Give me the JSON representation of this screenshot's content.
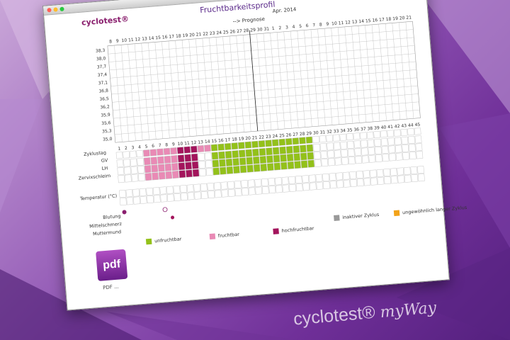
{
  "window": {
    "title": "Fruchtbarkeitsprofil",
    "logo": "cyclotest®"
  },
  "calendar": {
    "month_label": "Apr. 2014",
    "prognose_label": "--> Prognose",
    "days_top": [
      "8",
      "9",
      "10",
      "11",
      "12",
      "13",
      "14",
      "15",
      "16",
      "17",
      "18",
      "19",
      "20",
      "21",
      "22",
      "23",
      "24",
      "25",
      "26",
      "27",
      "28",
      "29",
      "30",
      "31",
      "1",
      "2",
      "3",
      "4",
      "5",
      "6",
      "7",
      "8",
      "9",
      "10",
      "11",
      "12",
      "13",
      "14",
      "15",
      "16",
      "17",
      "18",
      "19",
      "20",
      "21"
    ],
    "temps": [
      "38,3",
      "38,0",
      "37,7",
      "37,4",
      "37,1",
      "36,8",
      "36,5",
      "36,2",
      "35,9",
      "35,6",
      "35,3",
      "35,0"
    ],
    "cycle_days": [
      "1",
      "2",
      "3",
      "4",
      "5",
      "6",
      "7",
      "8",
      "9",
      "10",
      "11",
      "12",
      "13",
      "14",
      "15",
      "16",
      "17",
      "18",
      "19",
      "20",
      "21",
      "22",
      "23",
      "24",
      "25",
      "26",
      "27",
      "28",
      "29",
      "30",
      "31",
      "32",
      "33",
      "34",
      "35",
      "36",
      "37",
      "38",
      "39",
      "40",
      "41",
      "42",
      "43",
      "44",
      "45"
    ]
  },
  "rows": {
    "zyklustag": "Zyklustag",
    "gv": "GV",
    "lh": "LH",
    "zervix": "Zervixschleim",
    "temperatur": "Temperatur (°C)",
    "blutung": "Blutung",
    "mittelschmerz": "Mittelschmerz",
    "muttermund": "Muttermund"
  },
  "legend": {
    "unfruchtbar": "unfruchtbar",
    "fruchtbar": "fruchtbar",
    "hochfruchtbar": "hochfruchtbar",
    "inaktiv": "inaktiver Zyklus",
    "lang": "ungewöhnlich langer Zyklus",
    "colors": {
      "unfruchtbar": "#93c11a",
      "fruchtbar": "#e98ab5",
      "hochfruchtbar": "#a3145c",
      "inaktiv": "#999999",
      "lang": "#f2a31a"
    }
  },
  "pdf": {
    "icon": "pdf",
    "label": "PDF ..."
  },
  "brand": {
    "name": "cyclotest®",
    "suffix": "myWay"
  }
}
